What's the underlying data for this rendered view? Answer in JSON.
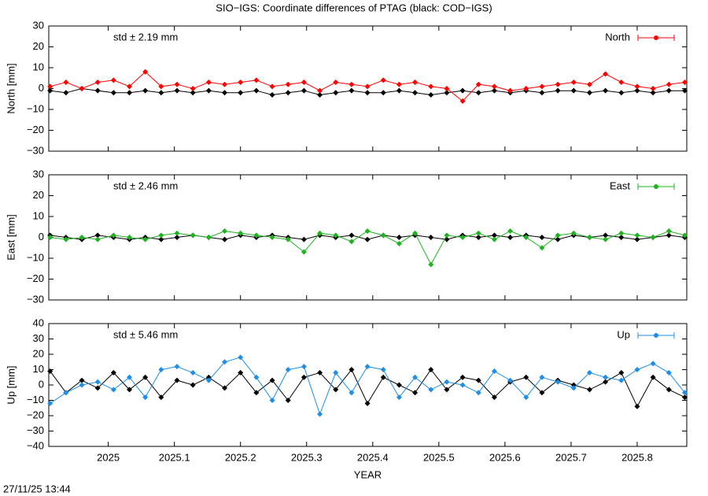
{
  "title": "SIO−IGS: Coordinate differences of PTAG (black: COD−IGS)",
  "timestamp": "27/11/25 13:44",
  "chart_data": [
    {
      "type": "line",
      "ylabel": "North [mm]",
      "annotation": "std ± 2.19 mm",
      "legend": "upper right",
      "xlim": [
        2024.91,
        2025.875
      ],
      "xticks": [
        2025,
        2025.1,
        2025.2,
        2025.3,
        2025.4,
        2025.5,
        2025.6,
        2025.7,
        2025.8
      ],
      "ylim": [
        -30,
        30
      ],
      "yticks": [
        {
          "value": -30,
          "label": "−30"
        },
        {
          "value": -20,
          "label": "−20"
        },
        {
          "value": -10,
          "label": "−10"
        },
        0,
        10,
        20,
        30
      ],
      "x": [
        2024.912,
        2024.936,
        2024.96,
        2024.984,
        2025.008,
        2025.032,
        2025.056,
        2025.08,
        2025.104,
        2025.128,
        2025.152,
        2025.176,
        2025.2,
        2025.224,
        2025.248,
        2025.272,
        2025.296,
        2025.32,
        2025.344,
        2025.368,
        2025.392,
        2025.416,
        2025.44,
        2025.464,
        2025.488,
        2025.512,
        2025.536,
        2025.56,
        2025.584,
        2025.608,
        2025.632,
        2025.656,
        2025.68,
        2025.704,
        2025.728,
        2025.752,
        2025.776,
        2025.8,
        2025.824,
        2025.848,
        2025.872
      ],
      "series": [
        {
          "color": "#000000",
          "values": [
            -1,
            -2,
            0,
            -1,
            -2,
            -2,
            -1,
            -2,
            -1,
            -2,
            -1,
            -2,
            -2,
            -1,
            -3,
            -2,
            -1,
            -3,
            -2,
            -1,
            -2,
            -2,
            -1,
            -2,
            -3,
            -2,
            -1,
            -2,
            -1,
            -2,
            -1,
            -2,
            -1,
            -1,
            -2,
            -1,
            -2,
            -1,
            -2,
            -1,
            -1
          ]
        },
        {
          "name": "North",
          "color": "#ff0000",
          "values": [
            1,
            3,
            0,
            3,
            4,
            1,
            8,
            1,
            2,
            0,
            3,
            2,
            3,
            4,
            1,
            2,
            3,
            -1,
            3,
            2,
            1,
            4,
            2,
            3,
            1,
            0,
            -6,
            2,
            1,
            -1,
            0,
            1,
            2,
            3,
            2,
            7,
            3,
            1,
            0,
            2,
            3
          ]
        }
      ]
    },
    {
      "type": "line",
      "ylabel": "East [mm]",
      "annotation": "std ± 2.46 mm",
      "legend": "upper right",
      "xlim": [
        2024.91,
        2025.875
      ],
      "xticks": [
        2025,
        2025.1,
        2025.2,
        2025.3,
        2025.4,
        2025.5,
        2025.6,
        2025.7,
        2025.8
      ],
      "ylim": [
        -30,
        30
      ],
      "yticks": [
        {
          "value": -30,
          "label": "−30"
        },
        {
          "value": -20,
          "label": "−20"
        },
        {
          "value": -10,
          "label": "−10"
        },
        0,
        10,
        20,
        30
      ],
      "x": [
        2024.912,
        2024.936,
        2024.96,
        2024.984,
        2025.008,
        2025.032,
        2025.056,
        2025.08,
        2025.104,
        2025.128,
        2025.152,
        2025.176,
        2025.2,
        2025.224,
        2025.248,
        2025.272,
        2025.296,
        2025.32,
        2025.344,
        2025.368,
        2025.392,
        2025.416,
        2025.44,
        2025.464,
        2025.488,
        2025.512,
        2025.536,
        2025.56,
        2025.584,
        2025.608,
        2025.632,
        2025.656,
        2025.68,
        2025.704,
        2025.728,
        2025.752,
        2025.776,
        2025.8,
        2025.824,
        2025.848,
        2025.872
      ],
      "series": [
        {
          "color": "#000000",
          "values": [
            1,
            0,
            -1,
            1,
            0,
            -1,
            0,
            -1,
            0,
            1,
            0,
            -1,
            1,
            0,
            1,
            0,
            -1,
            1,
            0,
            1,
            -1,
            1,
            0,
            1,
            0,
            -1,
            1,
            0,
            1,
            0,
            1,
            0,
            -1,
            1,
            0,
            1,
            0,
            -1,
            0,
            1,
            0
          ]
        },
        {
          "name": "East",
          "color": "#1fb31f",
          "values": [
            0,
            -1,
            0,
            -1,
            1,
            0,
            -1,
            1,
            2,
            1,
            0,
            3,
            2,
            1,
            0,
            -1,
            -7,
            2,
            1,
            -2,
            3,
            1,
            -3,
            2,
            -13,
            1,
            0,
            2,
            -1,
            3,
            0,
            -5,
            1,
            2,
            0,
            -1,
            2,
            1,
            0,
            3,
            1
          ]
        }
      ]
    },
    {
      "type": "line",
      "ylabel": "Up [mm]",
      "xlabel": "YEAR",
      "annotation": "std ± 5.46 mm",
      "legend": "upper right",
      "xlim": [
        2024.91,
        2025.875
      ],
      "xticks": [
        2025,
        2025.1,
        2025.2,
        2025.3,
        2025.4,
        2025.5,
        2025.6,
        2025.7,
        2025.8
      ],
      "ylim": [
        -40,
        40
      ],
      "yticks": [
        {
          "value": -40,
          "label": "−40"
        },
        {
          "value": -30,
          "label": "−30"
        },
        {
          "value": -20,
          "label": "−20"
        },
        {
          "value": -10,
          "label": "−10"
        },
        0,
        10,
        20,
        30,
        40
      ],
      "x": [
        2024.912,
        2024.936,
        2024.96,
        2024.984,
        2025.008,
        2025.032,
        2025.056,
        2025.08,
        2025.104,
        2025.128,
        2025.152,
        2025.176,
        2025.2,
        2025.224,
        2025.248,
        2025.272,
        2025.296,
        2025.32,
        2025.344,
        2025.368,
        2025.392,
        2025.416,
        2025.44,
        2025.464,
        2025.488,
        2025.512,
        2025.536,
        2025.56,
        2025.584,
        2025.608,
        2025.632,
        2025.656,
        2025.68,
        2025.704,
        2025.728,
        2025.752,
        2025.776,
        2025.8,
        2025.824,
        2025.848,
        2025.872
      ],
      "series": [
        {
          "color": "#000000",
          "values": [
            9,
            -5,
            3,
            -2,
            8,
            -3,
            5,
            -8,
            3,
            0,
            5,
            -2,
            8,
            -5,
            3,
            -10,
            5,
            8,
            -3,
            10,
            -12,
            5,
            0,
            -5,
            10,
            -3,
            5,
            3,
            -8,
            2,
            5,
            -5,
            3,
            0,
            -3,
            2,
            8,
            -14,
            5,
            -3,
            -8
          ]
        },
        {
          "name": "Up",
          "color": "#1e8ee6",
          "values": [
            -12,
            -5,
            0,
            2,
            -3,
            5,
            -8,
            10,
            12,
            8,
            3,
            15,
            18,
            5,
            -10,
            10,
            12,
            -19,
            8,
            -5,
            12,
            10,
            -8,
            5,
            -3,
            2,
            0,
            -5,
            9,
            3,
            -8,
            5,
            2,
            -2,
            8,
            5,
            3,
            10,
            14,
            8,
            -5
          ]
        }
      ]
    }
  ]
}
